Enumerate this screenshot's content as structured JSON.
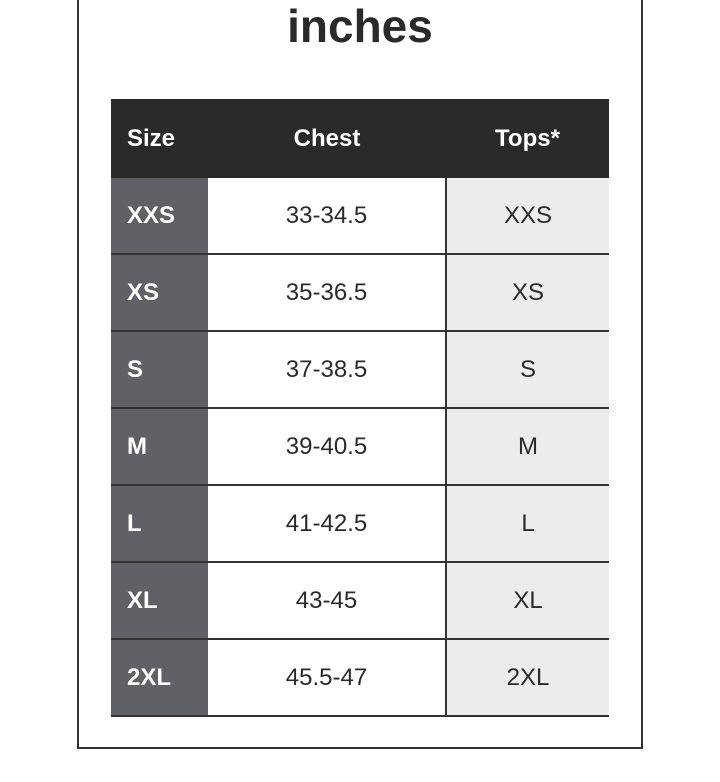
{
  "title": "inches",
  "table": {
    "headers": [
      "Size",
      "Chest",
      "Tops*"
    ],
    "rows": [
      {
        "size": "XXS",
        "chest": "33-34.5",
        "tops": "XXS"
      },
      {
        "size": "XS",
        "chest": "35-36.5",
        "tops": "XS"
      },
      {
        "size": "S",
        "chest": "37-38.5",
        "tops": "S"
      },
      {
        "size": "M",
        "chest": "39-40.5",
        "tops": "M"
      },
      {
        "size": "L",
        "chest": "41-42.5",
        "tops": "L"
      },
      {
        "size": "XL",
        "chest": "43-45",
        "tops": "XL"
      },
      {
        "size": "2XL",
        "chest": "45.5-47",
        "tops": "2XL"
      }
    ]
  },
  "colors": {
    "header_bg": "#2b2a28",
    "size_col_bg": "#5f6166",
    "tops_col_bg": "#ececec"
  }
}
